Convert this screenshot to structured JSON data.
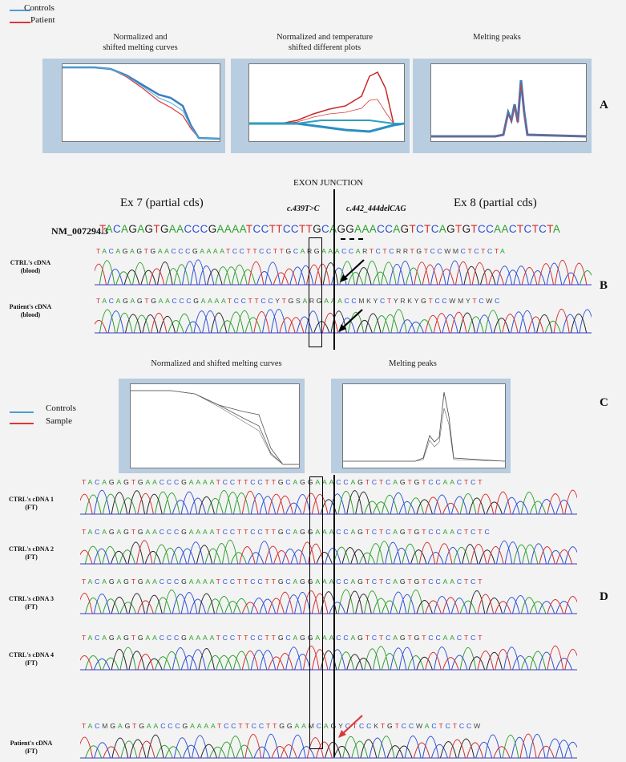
{
  "legend_top": {
    "controls": "Controls",
    "patient": "Patient",
    "controls_color": "#4a9fd0",
    "patient_color": "#d9383a"
  },
  "legend_bottom": {
    "controls": "Controls",
    "sample": "Sample"
  },
  "panel_A": {
    "titles": [
      "Normalized and\nshifted melting curves",
      "Normalized and temperature\nshifted different plots",
      "Melting peaks"
    ],
    "label": "A"
  },
  "panel_B": {
    "junction": "EXON JUNCTION",
    "ex7": "Ex 7 (partial cds)",
    "ex8": "Ex 8 (partial cds)",
    "mut1": "c.439T>C",
    "mut2": "c.442_444delCAG",
    "accession": "NM_007294.3",
    "ref_seq": "TACAGAGTGAACCCGAAAATCCTTCCTTGCAGGAAACCAGTCTCAGTGTCCAACTCTCTA",
    "ctrl_label": "CTRL's cDNA\n(blood)",
    "ctrl_seq": "TACAGAGTGAACCCGAAAATCCTTCCTTGCARGAAACCARTCTCRRTGTCCWMCTCTCTA",
    "pat_label": "Patient's cDNA\n(blood)",
    "pat_seq": "TACAGAGTGAACCCGAAAATCCTTCCYTGSARGAAACCMKYCTYRKYGTCCWMYTCWC",
    "label": "B"
  },
  "panel_C": {
    "titles": [
      "Normalized and shifted melting curves",
      "Melting peaks"
    ],
    "label": "C"
  },
  "panel_D": {
    "rows": [
      {
        "label": "CTRL's cDNA 1\n(FT)",
        "seq": "TACAGAGTGAACCCGAAAATCCTTCCTTGCAGGAAACCAGTCTCAGTGTCCAACTCT"
      },
      {
        "label": "CTRL's cDNA 2\n(FT)",
        "seq": "TACAGAGTGAACCCGAAAATCCTTCCTTGCAGGAAACCAGTCTCAGTGTCCAACTCTC"
      },
      {
        "label": "CTRL's cDNA 3\n(FT)",
        "seq": "TACAGAGTGAACCCGAAAATCCTTCCTTGCAGGAAACCAGTCTCAGTGTCCAACTCT"
      },
      {
        "label": "CTRL's cDNA 4\n(FT)",
        "seq": "TACAGAGTGAACCCGAAAATCCTTCCTTGCAGGAAACCAGTCTCAGTGTCCAACTCT"
      },
      {
        "label": "Patient's cDNA\n(FT)",
        "seq": "TACMGAGTGAACCCGAAAATCCTTCCTTGGAAMCAGYCTCCKTGTCCWACTCTCCW"
      }
    ],
    "label": "D"
  },
  "base_colors": {
    "A": "#2aa02a",
    "C": "#2a4fd6",
    "G": "#222222",
    "T": "#d62a2a",
    "other": "#444444"
  }
}
